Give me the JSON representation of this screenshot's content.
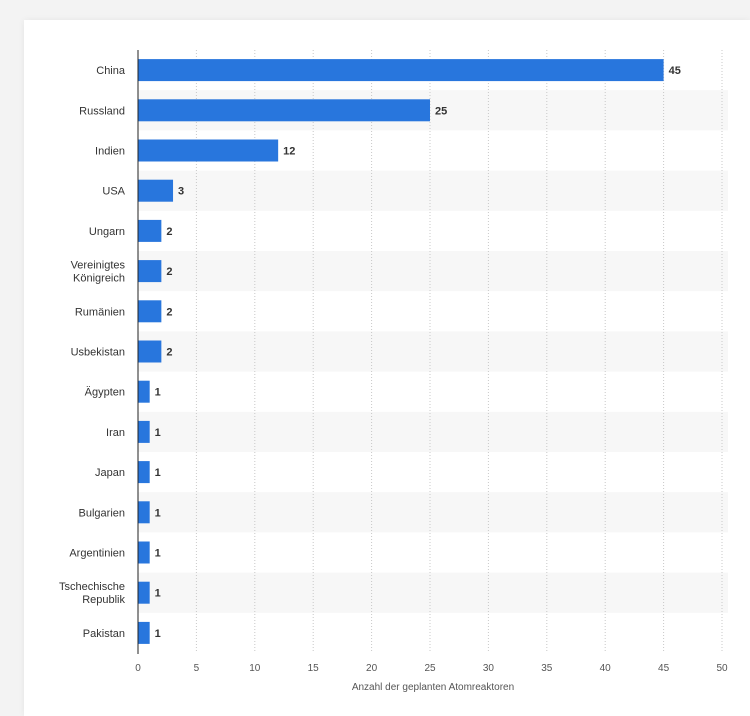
{
  "chart_data": {
    "type": "bar",
    "orientation": "horizontal",
    "categories": [
      "China",
      "Russland",
      "Indien",
      "USA",
      "Ungarn",
      "Vereinigtes Königreich",
      "Rumänien",
      "Usbekistan",
      "Ägypten",
      "Iran",
      "Japan",
      "Bulgarien",
      "Argentinien",
      "Tschechische Republik",
      "Pakistan"
    ],
    "category_lines": [
      [
        "China"
      ],
      [
        "Russland"
      ],
      [
        "Indien"
      ],
      [
        "USA"
      ],
      [
        "Ungarn"
      ],
      [
        "Vereinigtes",
        "Königreich"
      ],
      [
        "Rumänien"
      ],
      [
        "Usbekistan"
      ],
      [
        "Ägypten"
      ],
      [
        "Iran"
      ],
      [
        "Japan"
      ],
      [
        "Bulgarien"
      ],
      [
        "Argentinien"
      ],
      [
        "Tschechische",
        "Republik"
      ],
      [
        "Pakistan"
      ]
    ],
    "values": [
      45,
      25,
      12,
      3,
      2,
      2,
      2,
      2,
      1,
      1,
      1,
      1,
      1,
      1,
      1
    ],
    "xlabel": "Anzahl der geplanten Atomreaktoren",
    "ylabel": "",
    "xlim": [
      0,
      50
    ],
    "xticks": [
      0,
      5,
      10,
      15,
      20,
      25,
      30,
      35,
      40,
      45,
      50
    ],
    "grid": "vertical-dotted",
    "bar_color": "#2876dd",
    "stripe_color": "#f7f7f7"
  }
}
